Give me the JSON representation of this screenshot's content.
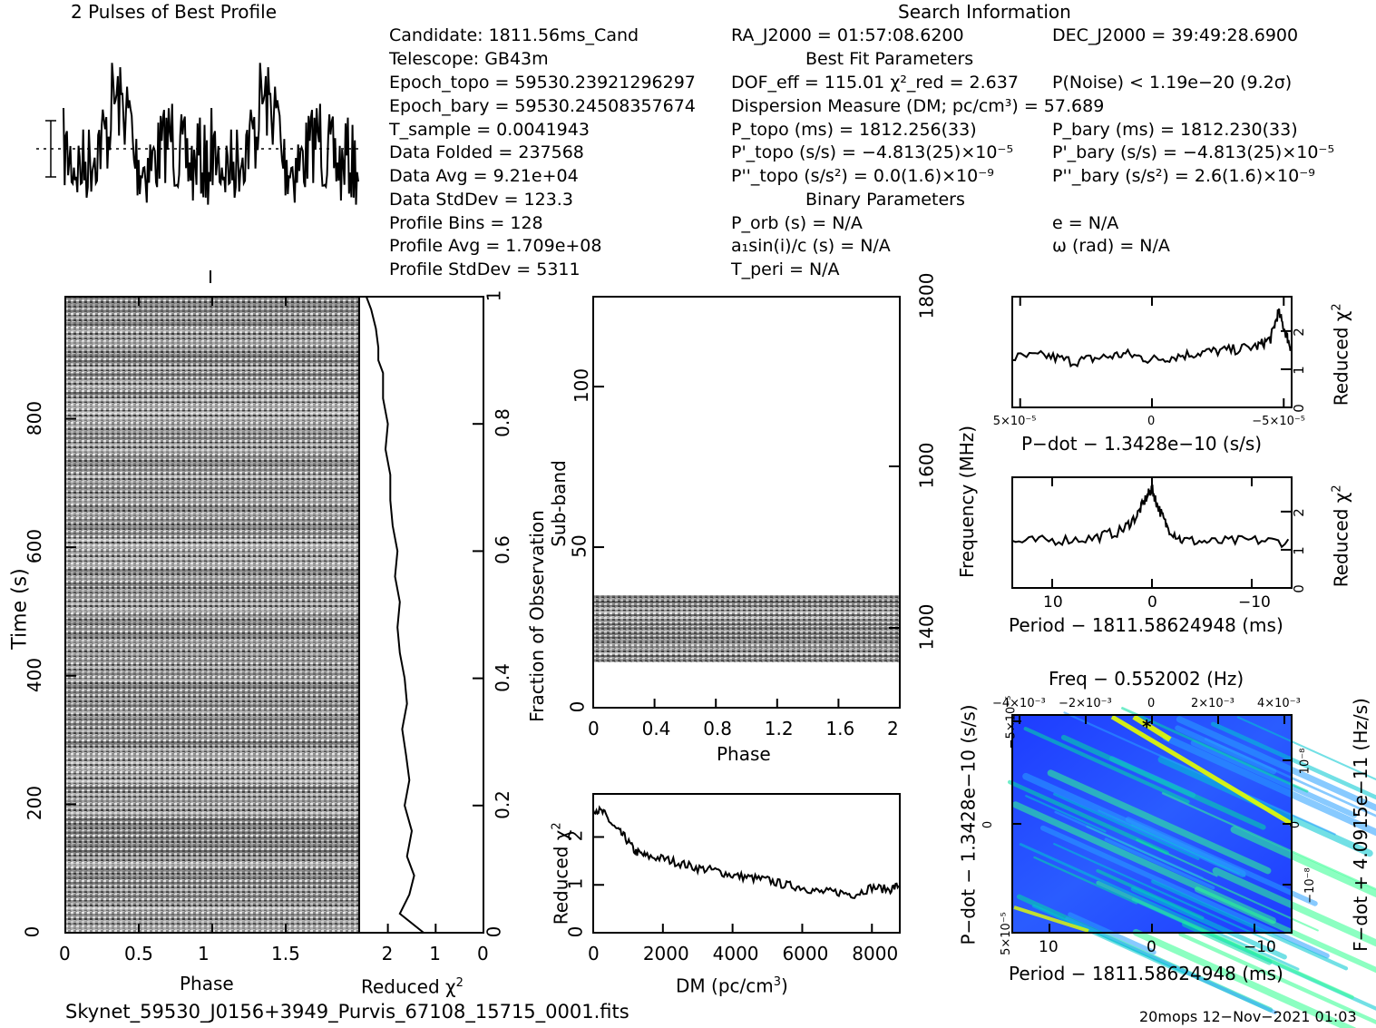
{
  "header": {
    "profile_title": "2 Pulses of Best Profile",
    "search_title": "Search Information"
  },
  "info_left": [
    "Candidate:  1811.56ms_Cand",
    "Telescope:  GB43m",
    "Epoch_topo = 59530.23921296297",
    "Epoch_bary = 59530.24508357674",
    "T_sample         =  0.0041943",
    "Data Folded      =  237568",
    "Data Avg         =  9.21e+04",
    "Data StdDev      =  123.3",
    "Profile Bins     =  128",
    "Profile Avg      =  1.709e+08",
    "Profile StdDev  =  5311"
  ],
  "info_mid": [
    "RA_J2000 = 01:57:08.6200",
    "Best Fit Parameters",
    "DOF_eff = 115.01  χ²_red = 2.637",
    "Dispersion Measure (DM; pc/cm³) = 57.689",
    "P_topo (ms) =  1812.256(33)",
    "P'_topo (s/s) = −4.813(25)×10⁻⁵",
    "P''_topo (s/s²) = 0.0(1.6)×10⁻⁹",
    "Binary Parameters",
    "P_orb (s) = N/A",
    "a₁sin(i)/c (s) = N/A",
    "T_peri = N/A"
  ],
  "info_right": [
    "DEC_J2000 = 39:49:28.6900",
    "P(Noise) < 1.19e−20  (9.2σ)",
    "P_bary (ms) =  1812.230(33)",
    "P'_bary (s/s) = −4.813(25)×10⁻⁵",
    "P''_bary (s/s²) =  2.6(1.6)×10⁻⁹",
    "e = N/A",
    "ω (rad) = N/A"
  ],
  "footer": {
    "filename": "Skynet_59530_J0156+3949_Purvis_67108_15715_0001.fits",
    "stamp": "20mops 12−Nov−2021 01:03"
  },
  "colors": {
    "ink": "#000000",
    "bg": "#ffffff",
    "map_low": "#1a1aff",
    "map_mid": "#00c8d0",
    "map_high": "#e6ff00"
  },
  "chart_data": [
    {
      "id": "profile",
      "type": "line",
      "title": "2 Pulses of Best Profile",
      "xlim": [
        0,
        2
      ],
      "note": "two identical pulses; noisy profile with dotted mean line and error bar"
    },
    {
      "id": "time-phase",
      "type": "heatmap",
      "xlabel": "Phase",
      "ylabel": "Time (s)",
      "xticks": [
        "0",
        "0.5",
        "1",
        "1.5"
      ],
      "yticks": [
        "0",
        "200",
        "400",
        "600",
        "800"
      ],
      "xlim": [
        0,
        2
      ],
      "ylim": [
        0,
        990
      ]
    },
    {
      "id": "time-redchi",
      "type": "line",
      "xlabel": "Reduced χ²",
      "ylabel": "Fraction of Observation",
      "xticks": [
        "2",
        "1",
        "0"
      ],
      "yticks": [
        "0",
        "0.2",
        "0.4",
        "0.6",
        "0.8",
        "1"
      ],
      "xlim": [
        2.6,
        0
      ],
      "x": [
        1.25,
        1.75,
        1.55,
        1.45,
        1.6,
        1.5,
        1.65,
        1.55,
        1.62,
        1.7,
        1.6,
        1.65,
        1.75,
        1.8,
        1.75,
        1.85,
        1.8,
        1.9,
        1.95,
        1.95,
        2.05,
        2.0,
        2.1,
        2.1,
        2.2,
        2.2,
        2.25,
        2.35,
        2.45
      ],
      "y": [
        0.0,
        0.03,
        0.06,
        0.09,
        0.12,
        0.16,
        0.2,
        0.24,
        0.28,
        0.32,
        0.36,
        0.4,
        0.44,
        0.48,
        0.52,
        0.56,
        0.6,
        0.64,
        0.68,
        0.72,
        0.76,
        0.8,
        0.84,
        0.88,
        0.9,
        0.92,
        0.95,
        0.98,
        1.0
      ]
    },
    {
      "id": "subband-phase",
      "type": "heatmap",
      "xlabel": "Phase",
      "ylabel": "Sub-band",
      "y2label": "Frequency (MHz)",
      "xticks": [
        "0",
        "0.4",
        "0.8",
        "1.2",
        "1.6",
        "2"
      ],
      "yticks": [
        "0",
        "50",
        "100"
      ],
      "y2ticks": [
        "1400",
        "1600",
        "1800"
      ],
      "xlim": [
        0,
        2
      ],
      "ylim": [
        0,
        128
      ],
      "band_rows": [
        14,
        35
      ]
    },
    {
      "id": "dm",
      "type": "line",
      "xlabel": "DM (pc/cm³)",
      "ylabel": "Reduced χ²",
      "xticks": [
        "0",
        "2000",
        "4000",
        "6000",
        "8000"
      ],
      "yticks": [
        "0",
        "1",
        "2"
      ],
      "xlim": [
        0,
        8800
      ],
      "ylim": [
        0,
        2.9
      ],
      "x": [
        0,
        300,
        600,
        900,
        1200,
        1500,
        2000,
        2500,
        3000,
        3500,
        4000,
        4500,
        5000,
        5500,
        6000,
        6500,
        7000,
        7500,
        8000,
        8500,
        8800
      ],
      "y": [
        2.6,
        2.5,
        2.2,
        2.0,
        1.7,
        1.6,
        1.55,
        1.45,
        1.35,
        1.3,
        1.2,
        1.15,
        1.1,
        1.0,
        0.95,
        0.85,
        0.85,
        0.8,
        0.95,
        0.9,
        1.0
      ]
    },
    {
      "id": "pdot",
      "type": "line",
      "xlabel": "P−dot − 1.3428e−10 (s/s)",
      "ylabel": "Reduced χ²",
      "xticks": [
        "5×10⁻⁵",
        "0",
        "−5×10⁻⁵"
      ],
      "yticks": [
        "0",
        "1",
        "2"
      ],
      "xlim": [
        5.3e-05,
        -5.3e-05
      ],
      "ylim": [
        0,
        2.9
      ],
      "x": [
        5.3e-05,
        4e-05,
        3e-05,
        2e-05,
        1e-05,
        0,
        -1e-05,
        -2e-05,
        -3e-05,
        -4e-05,
        -4.5e-05,
        -4.8e-05,
        -5.1e-05,
        -5.3e-05
      ],
      "y": [
        1.3,
        1.35,
        1.2,
        1.3,
        1.4,
        1.25,
        1.35,
        1.45,
        1.5,
        1.6,
        1.8,
        2.5,
        1.9,
        1.5
      ]
    },
    {
      "id": "period",
      "type": "line",
      "xlabel": "Period − 1811.58624948 (ms)",
      "ylabel": "Reduced χ²",
      "xticks": [
        "10",
        "0",
        "−10"
      ],
      "yticks": [
        "0",
        "1",
        "2"
      ],
      "xlim": [
        14,
        -14
      ],
      "ylim": [
        0,
        2.9
      ],
      "x": [
        14,
        10,
        6,
        3,
        1.5,
        0.5,
        0,
        -0.5,
        -1.5,
        -3,
        -6,
        -10,
        -14
      ],
      "y": [
        1.2,
        1.25,
        1.3,
        1.5,
        1.9,
        2.4,
        2.6,
        2.2,
        1.6,
        1.25,
        1.2,
        1.25,
        1.2
      ]
    },
    {
      "id": "period-pdot-map",
      "type": "heatmap",
      "title": "Freq − 0.552002 (Hz)",
      "xlabel": "Period − 1811.58624948 (ms)",
      "ylabel": "P−dot − 1.3428e−10 (s/s)",
      "x2label": "Freq − 0.552002 (Hz)",
      "y2label": "F−dot + 4.0915e−11 (Hz/s)",
      "xticks": [
        "10",
        "0",
        "−10"
      ],
      "x2ticks": [
        "−4×10⁻³",
        "−2×10⁻³",
        "0",
        "2×10⁻³",
        "4×10⁻³"
      ],
      "yticks": [
        "5×10⁻⁵",
        "0",
        "−5×10⁻⁵"
      ],
      "y2ticks": [
        "−10⁻⁸",
        "0",
        "10⁻⁸"
      ],
      "best_fit_marker": {
        "period_ms": 0.5,
        "pdot": -4.8e-05
      }
    }
  ]
}
